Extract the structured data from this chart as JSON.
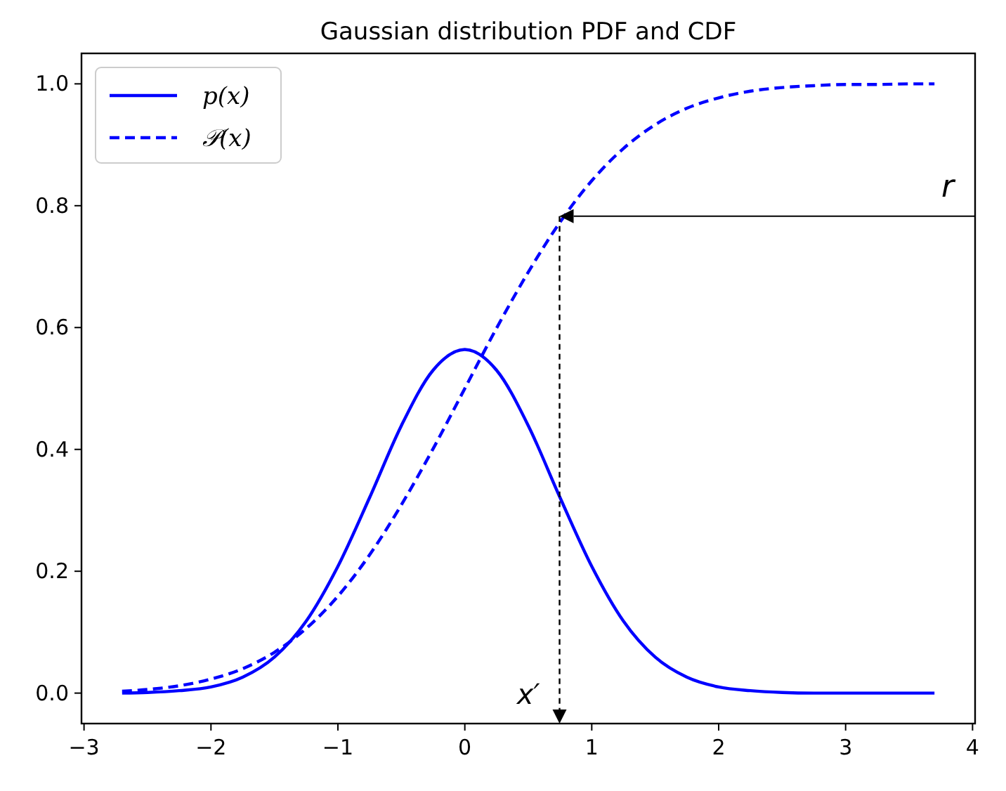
{
  "chart_data": {
    "type": "line",
    "title": "Gaussian distribution PDF and CDF",
    "x": [
      -2.7,
      -2.5,
      -2.25,
      -2,
      -1.75,
      -1.5,
      -1.25,
      -1,
      -0.75,
      -0.5,
      -0.25,
      0,
      0.25,
      0.5,
      0.75,
      1,
      1.25,
      1.5,
      1.75,
      2,
      2.25,
      2.5,
      2.75,
      3,
      3.25,
      3.5,
      3.7
    ],
    "series": [
      {
        "name": "p(x)",
        "color": "#0000ff",
        "line_style": "solid",
        "values": [
          0.0,
          0.001,
          0.004,
          0.01,
          0.026,
          0.059,
          0.118,
          0.208,
          0.321,
          0.439,
          0.53,
          0.564,
          0.53,
          0.439,
          0.321,
          0.208,
          0.118,
          0.059,
          0.026,
          0.01,
          0.004,
          0.001,
          0.0,
          0.0,
          0.0,
          0.0,
          0.0
        ]
      },
      {
        "name": "𝒫(x)",
        "color": "#0000ff",
        "line_style": "dashed",
        "values": [
          0.003,
          0.006,
          0.012,
          0.023,
          0.04,
          0.067,
          0.106,
          0.159,
          0.227,
          0.309,
          0.401,
          0.5,
          0.599,
          0.691,
          0.773,
          0.841,
          0.894,
          0.933,
          0.96,
          0.977,
          0.988,
          0.994,
          0.997,
          0.999,
          0.999,
          1.0,
          1.0
        ]
      }
    ],
    "xlim": [
      -3.02,
      4.02
    ],
    "ylim": [
      -0.05,
      1.05
    ],
    "xticks": [
      {
        "value": -3,
        "label": "−3"
      },
      {
        "value": -2,
        "label": "−2"
      },
      {
        "value": -1,
        "label": "−1"
      },
      0,
      1,
      2,
      3,
      4
    ],
    "yticks": [
      {
        "value": 0,
        "label": "0.0"
      },
      0.2,
      0.4,
      0.6,
      0.8,
      {
        "value": 1,
        "label": "1.0"
      }
    ],
    "annotations": [
      "r",
      "x′"
    ],
    "legend": "top left",
    "grid": false,
    "marker": "none"
  }
}
